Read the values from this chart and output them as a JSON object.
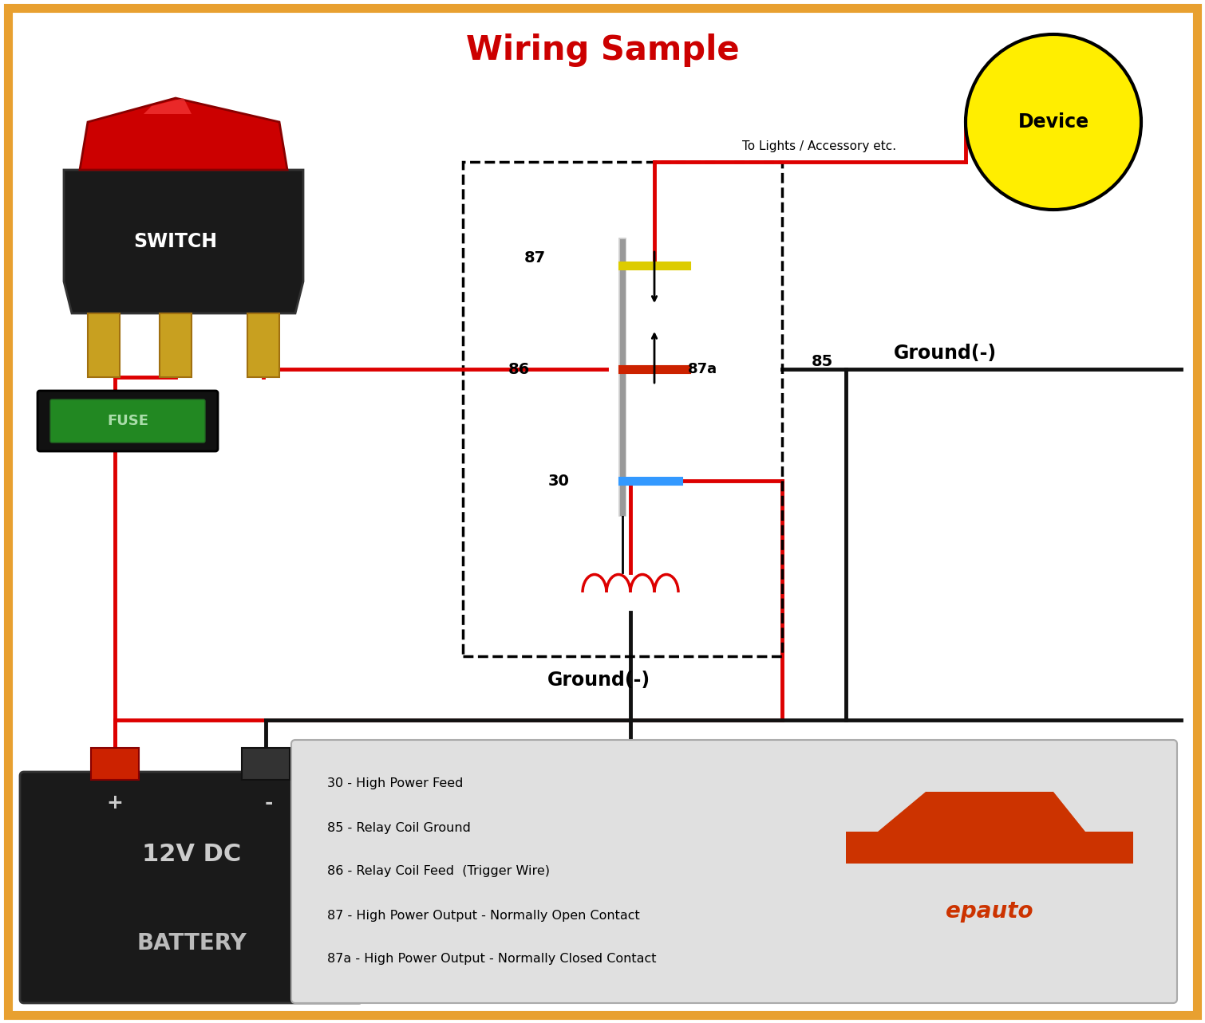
{
  "title": "Wiring Sample",
  "title_color": "#cc0000",
  "title_fontsize": 30,
  "background_color": "#ffffff",
  "border_color": "#e8a030",
  "border_width": 8,
  "switch_label": "SWITCH",
  "battery_label_line1": "12V DC",
  "battery_label_line2": "BATTERY",
  "battery_plus": "+",
  "battery_minus": "-",
  "fuse_label": "FUSE",
  "device_label": "Device",
  "ground_label_right": "Ground(-)",
  "ground_label_bottom": "Ground(-)",
  "lights_label": "To Lights / Accessory etc.",
  "pin_labels": [
    "87",
    "86",
    "87a",
    "30",
    "85"
  ],
  "legend_items": [
    "30 - High Power Feed",
    "85 - Relay Coil Ground",
    "86 - Relay Coil Feed  (Trigger Wire)",
    "87 - High Power Output - Normally Open Contact",
    "87a - High Power Output - Normally Closed Contact"
  ],
  "red_wire": "#dd0000",
  "black_wire": "#111111",
  "yellow_contact": "#ddcc00",
  "blue_contact": "#3399ff",
  "red_contact": "#cc2200"
}
